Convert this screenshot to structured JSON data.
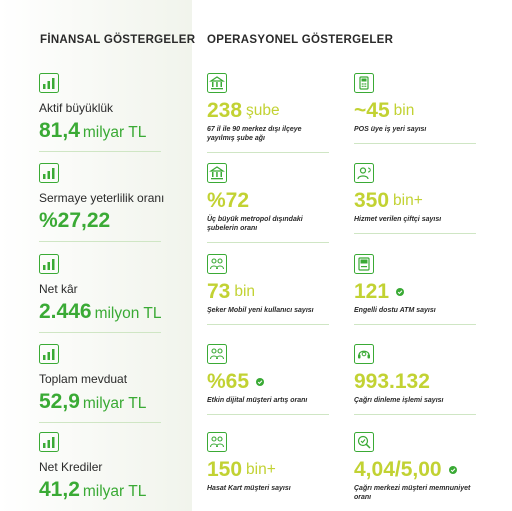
{
  "headers": {
    "financial": "FİNANSAL GÖSTERGELER",
    "operational": "OPERASYONEL GÖSTERGELER"
  },
  "financial": [
    {
      "icon": "bar-chart-icon",
      "label": "Aktif büyüklük",
      "number": "81,4",
      "unit": "milyar TL"
    },
    {
      "icon": "bar-chart-icon",
      "label": "Sermaye yeterlilik oranı",
      "number": "%27,22",
      "unit": ""
    },
    {
      "icon": "bar-chart-icon",
      "label": "Net kâr",
      "number": "2.446",
      "unit": "milyon TL"
    },
    {
      "icon": "bar-chart-icon",
      "label": "Toplam mevduat",
      "number": "52,9",
      "unit": "milyar TL"
    },
    {
      "icon": "bar-chart-icon",
      "label": "Net Krediler",
      "number": "41,2",
      "unit": "milyar TL"
    }
  ],
  "operational": [
    {
      "icon": "bank-icon",
      "number": "238",
      "unit": "şube",
      "desc": "67 il ile 90 merkez dışı ilçeye yayılmış şube ağı"
    },
    {
      "icon": "pos-terminal-icon",
      "number": "~45",
      "unit": "bin",
      "desc": "POS üye iş yeri sayısı"
    },
    {
      "icon": "bank-icon",
      "number": "%72",
      "unit": "",
      "desc": "Üç büyük metropol dışındaki şubelerin oranı"
    },
    {
      "icon": "farmer-icon",
      "number": "350",
      "unit": "bin+",
      "desc": "Hizmet verilen çiftçi sayısı"
    },
    {
      "icon": "customers-icon",
      "number": "73",
      "unit": "bin",
      "desc": "Şeker Mobil yeni kullanıcı sayısı"
    },
    {
      "icon": "atm-icon",
      "number": "121",
      "unit": "",
      "desc": "Engelli dostu ATM sayısı"
    },
    {
      "icon": "customers-icon",
      "number": "%65",
      "unit": "",
      "desc": "Etkin dijital müşteri artış oranı"
    },
    {
      "icon": "call-center-icon",
      "number": "993.132",
      "unit": "",
      "desc": "Çağrı dinleme işlemi sayısı"
    },
    {
      "icon": "customers-icon",
      "number": "150",
      "unit": "bin+",
      "desc": "Hasat Kart müşteri sayısı"
    },
    {
      "icon": "satisfaction-icon",
      "number": "4,04/5,00",
      "unit": "",
      "desc": "Çağrı merkezi müşteri memnuniyet oranı"
    }
  ],
  "colors": {
    "financial_value": "#3aaa35",
    "operational_value": "#c2d233",
    "divider": "#cfe6c4"
  }
}
